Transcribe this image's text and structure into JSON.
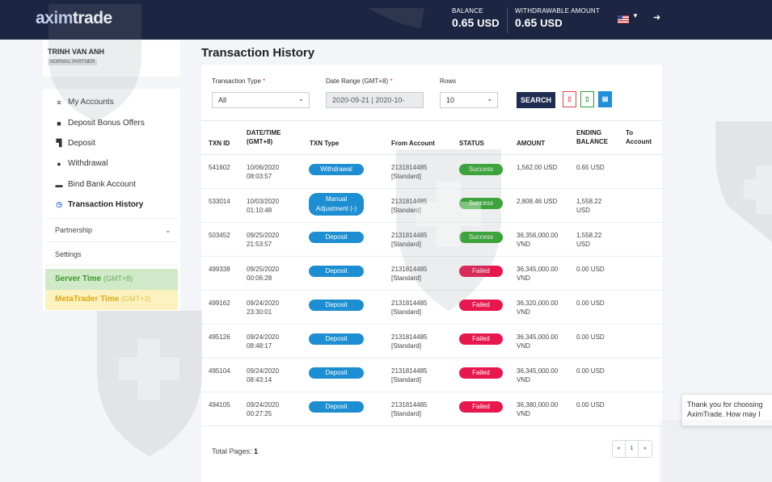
{
  "header": {
    "logo_prefix": "axim",
    "logo_suffix": "trade",
    "balance_label": "BALANCE",
    "balance_value": "0.65",
    "balance_currency": "USD",
    "withdrawable_label": "WITHDRAWABLE AMOUNT",
    "withdrawable_value": "0.65",
    "withdrawable_currency": "USD",
    "flag_icon": "us-flag-icon",
    "logout_icon": "sign-out-icon"
  },
  "user": {
    "name": "TRINH VAN ANH",
    "role": "NORMAL PARTNER"
  },
  "sidebar": {
    "items": [
      {
        "label": "My Accounts",
        "icon": "list-icon"
      },
      {
        "label": "Deposit Bonus Offers",
        "icon": "gift-icon"
      },
      {
        "label": "Deposit",
        "icon": "cart-icon"
      },
      {
        "label": "Withdrawal",
        "icon": "cash-icon"
      },
      {
        "label": "Bind Bank Account",
        "icon": "bank-card-icon"
      },
      {
        "label": "Transaction History",
        "icon": "clock-icon"
      }
    ],
    "partnership": "Partnership",
    "settings": "Settings",
    "server_time_label": "Server Time",
    "server_time_tz": "(GMT+8)",
    "mt_time_label": "MetaTrader Time",
    "mt_time_tz": "(GMT+3)"
  },
  "page": {
    "title": "Transaction History"
  },
  "filters": {
    "type_label": "Transaction Type",
    "type_value": "All",
    "range_label": "Date Range (GMT+8)",
    "range_value": "2020-09-21 | 2020-10-",
    "rows_label": "Rows",
    "rows_value": "10",
    "required_mark": "*",
    "search_label": "SEARCH",
    "export_pdf_icon": "file-pdf-icon",
    "export_excel_icon": "file-excel-icon",
    "export_doc_icon": "file-doc-icon"
  },
  "table": {
    "headers": {
      "id": "TXN ID",
      "date_l1": "DATE/TIME",
      "date_l2": "(GMT+8)",
      "type": "TXN Type",
      "from": "From Account",
      "status": "STATUS",
      "amount": "AMOUNT",
      "end_l1": "ENDING",
      "end_l2": "BALANCE",
      "to_l1": "To",
      "to_l2": "Account"
    },
    "rows": [
      {
        "id": "541602",
        "date": "10/06/2020",
        "time": "08:03:57",
        "type": "Withdrawal",
        "type2": "",
        "from": "2131814485",
        "from2": "[Standard]",
        "status": "Success",
        "amount": "1,562.00 USD",
        "amount2": "",
        "ending": "0.65 USD",
        "ending2": ""
      },
      {
        "id": "533014",
        "date": "10/03/2020",
        "time": "01:10:48",
        "type": "Manual",
        "type2": "Adjustment (-)",
        "from": "2131814485",
        "from2": "[Standard]",
        "status": "Success",
        "amount": "2,808.46 USD",
        "amount2": "",
        "ending": "1,558.22",
        "ending2": "USD"
      },
      {
        "id": "503452",
        "date": "09/25/2020",
        "time": "21:53:57",
        "type": "Deposit",
        "type2": "",
        "from": "2131814485",
        "from2": "[Standard]",
        "status": "Success",
        "amount": "36,356,000.00",
        "amount2": "VND",
        "ending": "1,558.22",
        "ending2": "USD"
      },
      {
        "id": "499338",
        "date": "09/25/2020",
        "time": "00:06:28",
        "type": "Deposit",
        "type2": "",
        "from": "2131814485",
        "from2": "[Standard]",
        "status": "Failed",
        "amount": "36,345,000.00",
        "amount2": "VND",
        "ending": "0.00 USD",
        "ending2": ""
      },
      {
        "id": "499162",
        "date": "09/24/2020",
        "time": "23:30:01",
        "type": "Deposit",
        "type2": "",
        "from": "2131814485",
        "from2": "[Standard]",
        "status": "Failed",
        "amount": "36,320,000.00",
        "amount2": "VND",
        "ending": "0.00 USD",
        "ending2": ""
      },
      {
        "id": "495126",
        "date": "09/24/2020",
        "time": "08:48:17",
        "type": "Deposit",
        "type2": "",
        "from": "2131814485",
        "from2": "[Standard]",
        "status": "Failed",
        "amount": "36,345,000.00",
        "amount2": "VND",
        "ending": "0.00 USD",
        "ending2": ""
      },
      {
        "id": "495104",
        "date": "09/24/2020",
        "time": "08:43:14",
        "type": "Deposit",
        "type2": "",
        "from": "2131814485",
        "from2": "[Standard]",
        "status": "Failed",
        "amount": "36,345,000.00",
        "amount2": "VND",
        "ending": "0.00 USD",
        "ending2": ""
      },
      {
        "id": "494105",
        "date": "09/24/2020",
        "time": "00:27:25",
        "type": "Deposit",
        "type2": "",
        "from": "2131814485",
        "from2": "[Standard]",
        "status": "Failed",
        "amount": "36,380,000.00",
        "amount2": "VND",
        "ending": "0.00 USD",
        "ending2": ""
      }
    ]
  },
  "footer": {
    "total_label": "Total Pages:",
    "total_value": "1",
    "pager_prev": "«",
    "pager_page": "1",
    "pager_next": "»"
  },
  "chat": {
    "message": "Thank you for choosing AximTrade. How may I"
  },
  "colors": {
    "header_bg": "#1c2541",
    "success": "#2fa72c",
    "failed": "#e8184f",
    "type_pill": "#1c8ed1"
  }
}
